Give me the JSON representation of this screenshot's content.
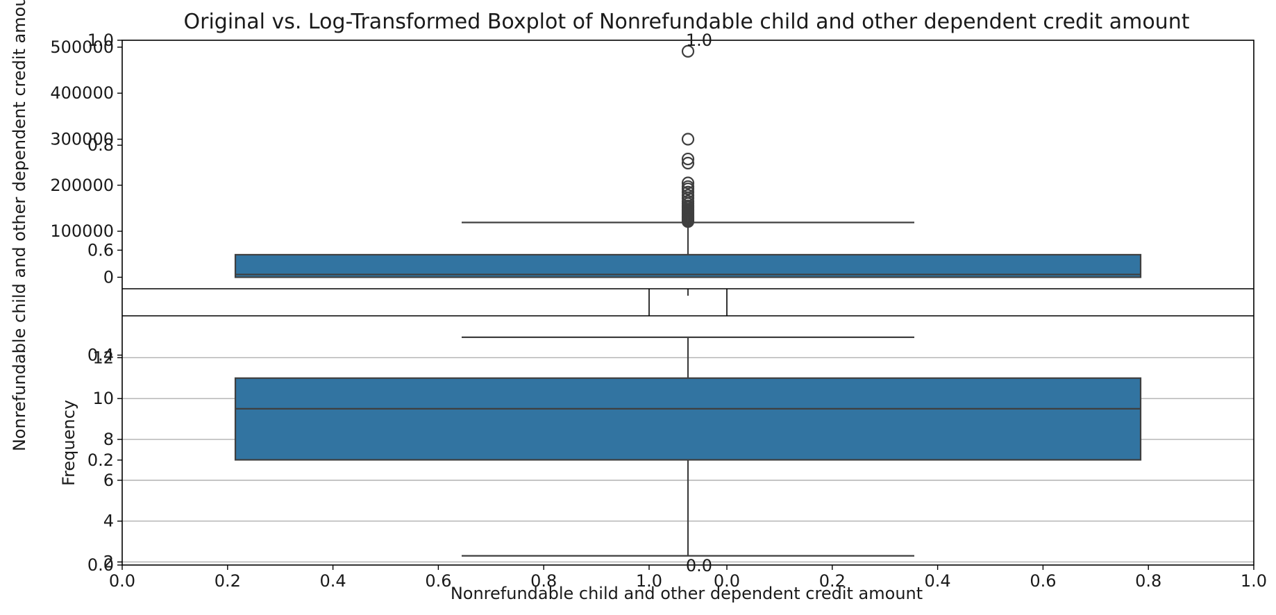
{
  "title": "Original vs. Log-Transformed Boxplot of Nonrefundable child and other dependent credit amount",
  "outer_ylabel": "Nonrefundable child and other dependent credit amount",
  "outer_xlabel": "Nonrefundable child and other dependent credit amount",
  "colors": {
    "box_fill": "#3274a1",
    "line": "#3f3f3f",
    "grid": "#b0b0b0",
    "frame": "#000000"
  },
  "chart_data": [
    {
      "type": "axes",
      "role": "background figure axes",
      "x": {
        "ticks": [
          0.0,
          0.2,
          0.4,
          0.6,
          0.8,
          1.0
        ],
        "range": [
          0,
          1
        ]
      },
      "y": {
        "ticks": [
          0.0,
          0.2,
          0.4,
          0.6,
          0.8,
          1.0
        ],
        "range": [
          0,
          1
        ]
      },
      "grid": false
    },
    {
      "type": "boxplot",
      "role": "original (top panel)",
      "ylim": [
        -25000,
        515000
      ],
      "yticks": [
        0,
        100000,
        200000,
        300000,
        400000,
        500000
      ],
      "box": {
        "min": 0,
        "q1": 0,
        "median": 6000,
        "q3": 49000,
        "whisker_high": 119000
      },
      "outliers": [
        121000,
        124000,
        127000,
        130000,
        133000,
        136000,
        139000,
        142000,
        145000,
        148000,
        152000,
        155000,
        160000,
        165000,
        172000,
        178000,
        185000,
        192000,
        197000,
        205000,
        248000,
        257000,
        300000,
        491000
      ],
      "grid": false
    },
    {
      "type": "axes",
      "role": "empty middle panel",
      "x": {
        "ticks": [
          0.0
        ],
        "range": [
          0,
          1
        ]
      },
      "y": {
        "ticks": [
          1.0
        ],
        "range": [
          0,
          1
        ]
      }
    },
    {
      "type": "boxplot",
      "role": "log-transformed (bottom panel)",
      "ylabel": "Frequency",
      "ylim": [
        1.85,
        14.05
      ],
      "yticks": [
        2,
        4,
        6,
        8,
        10,
        12
      ],
      "box": {
        "whisker_low": 2.3,
        "q1": 7.0,
        "median": 9.5,
        "q3": 11.0,
        "whisker_high": 13.0
      },
      "grid": true
    }
  ]
}
